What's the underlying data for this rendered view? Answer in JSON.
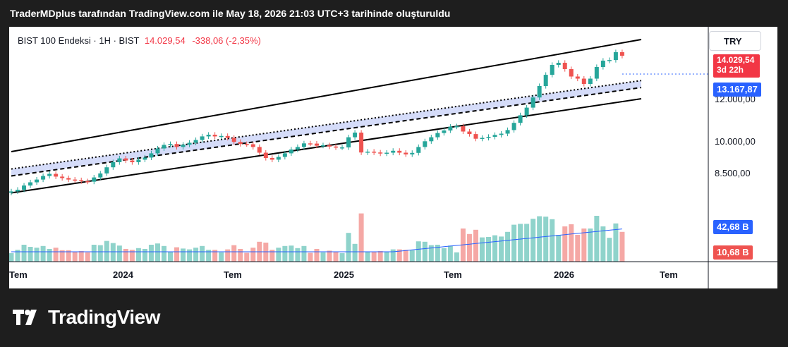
{
  "header": {
    "text": "TraderMDplus tarafından TradingView.com ile May 18, 2026 21:03 UTC+3 tarihinde oluşturuldu"
  },
  "legend": {
    "symbol": "BIST 100 Endeksi · 1H · BIST",
    "price": "14.029,54",
    "change": "-338,06 (-2,35%)"
  },
  "currency": "TRY",
  "price_tags": {
    "last_price": "14.029,54",
    "countdown": "3d 22h",
    "level": "13.167,87",
    "volume_ma": "42,68 B",
    "volume": "10,68 B"
  },
  "y_axis_labels": [
    "12.000,00",
    "10.000,00",
    "8.500,00"
  ],
  "x_axis_labels": [
    "Tem",
    "2024",
    "Tem",
    "2025",
    "Tem",
    "2026",
    "Tem"
  ],
  "footer": {
    "brand": "TradingView"
  },
  "colors": {
    "up": "#26a69a",
    "down": "#ef5350",
    "vol_up": "#8fd3cb",
    "vol_down": "#f5a8a5",
    "band": "#d5dcf9",
    "ma": "#2962ff",
    "level": "#2962ff",
    "last": "#f23645"
  },
  "chart_data": {
    "type": "line",
    "title": "BIST 100 Endeksi · 1H · BIST",
    "y_ticks": [
      8500,
      10000,
      12000
    ],
    "x_ticks": [
      "Tem",
      "2024",
      "Tem",
      "2025",
      "Tem",
      "2026",
      "Tem"
    ],
    "channel_upper": [
      [
        0,
        9500
      ],
      [
        99,
        14800
      ]
    ],
    "channel_lower": [
      [
        0,
        7550
      ],
      [
        99,
        12000
      ]
    ],
    "band_top_dotted": [
      [
        0,
        8680
      ],
      [
        99,
        12860
      ]
    ],
    "band_bottom_dashed": [
      [
        0,
        8350
      ],
      [
        99,
        12530
      ]
    ],
    "horizontal_level": 13167.87,
    "last_price": 14029.54,
    "price": [
      [
        0,
        7620
      ],
      [
        1,
        7700
      ],
      [
        2,
        7900
      ],
      [
        3,
        8050
      ],
      [
        4,
        8180
      ],
      [
        5,
        8350
      ],
      [
        6,
        8450
      ],
      [
        7,
        8320
      ],
      [
        8,
        8250
      ],
      [
        9,
        8180
      ],
      [
        10,
        8150
      ],
      [
        11,
        8100
      ],
      [
        12,
        8080
      ],
      [
        13,
        8280
      ],
      [
        14,
        8470
      ],
      [
        15,
        8760
      ],
      [
        16,
        9000
      ],
      [
        17,
        9180
      ],
      [
        18,
        9080
      ],
      [
        19,
        9000
      ],
      [
        20,
        9120
      ],
      [
        21,
        9220
      ],
      [
        22,
        9420
      ],
      [
        23,
        9650
      ],
      [
        24,
        9820
      ],
      [
        25,
        9860
      ],
      [
        26,
        9720
      ],
      [
        27,
        9830
      ],
      [
        28,
        9920
      ],
      [
        29,
        10050
      ],
      [
        30,
        10220
      ],
      [
        31,
        10300
      ],
      [
        32,
        10220
      ],
      [
        33,
        10240
      ],
      [
        34,
        10150
      ],
      [
        35,
        9960
      ],
      [
        36,
        9860
      ],
      [
        37,
        9850
      ],
      [
        38,
        9720
      ],
      [
        39,
        9450
      ],
      [
        40,
        9200
      ],
      [
        41,
        9120
      ],
      [
        42,
        9250
      ],
      [
        43,
        9420
      ],
      [
        44,
        9600
      ],
      [
        45,
        9720
      ],
      [
        46,
        9890
      ],
      [
        47,
        9880
      ],
      [
        48,
        9780
      ],
      [
        49,
        9800
      ],
      [
        50,
        9740
      ],
      [
        51,
        9700
      ],
      [
        52,
        9700
      ],
      [
        53,
        10180
      ],
      [
        54,
        10400
      ],
      [
        55,
        9460
      ],
      [
        56,
        9500
      ],
      [
        57,
        9460
      ],
      [
        58,
        9410
      ],
      [
        59,
        9450
      ],
      [
        60,
        9540
      ],
      [
        61,
        9450
      ],
      [
        62,
        9370
      ],
      [
        63,
        9440
      ],
      [
        64,
        9720
      ],
      [
        65,
        9990
      ],
      [
        66,
        10180
      ],
      [
        67,
        10380
      ],
      [
        68,
        10500
      ],
      [
        69,
        10680
      ],
      [
        70,
        10700
      ],
      [
        71,
        10450
      ],
      [
        72,
        10330
      ],
      [
        73,
        10110
      ],
      [
        74,
        10150
      ],
      [
        75,
        10200
      ],
      [
        76,
        10290
      ],
      [
        77,
        10350
      ],
      [
        78,
        10520
      ],
      [
        79,
        10860
      ],
      [
        80,
        11220
      ],
      [
        81,
        11580
      ],
      [
        82,
        12060
      ],
      [
        83,
        12600
      ],
      [
        84,
        13130
      ],
      [
        85,
        13600
      ],
      [
        86,
        13700
      ],
      [
        87,
        13400
      ],
      [
        88,
        13050
      ],
      [
        89,
        12950
      ],
      [
        90,
        12700
      ],
      [
        91,
        12950
      ],
      [
        92,
        13500
      ],
      [
        93,
        13800
      ],
      [
        94,
        13830
      ],
      [
        95,
        14200
      ],
      [
        96,
        14029.54
      ]
    ],
    "volume_ma": "42,68 B",
    "volume_last": "10,68 B"
  }
}
